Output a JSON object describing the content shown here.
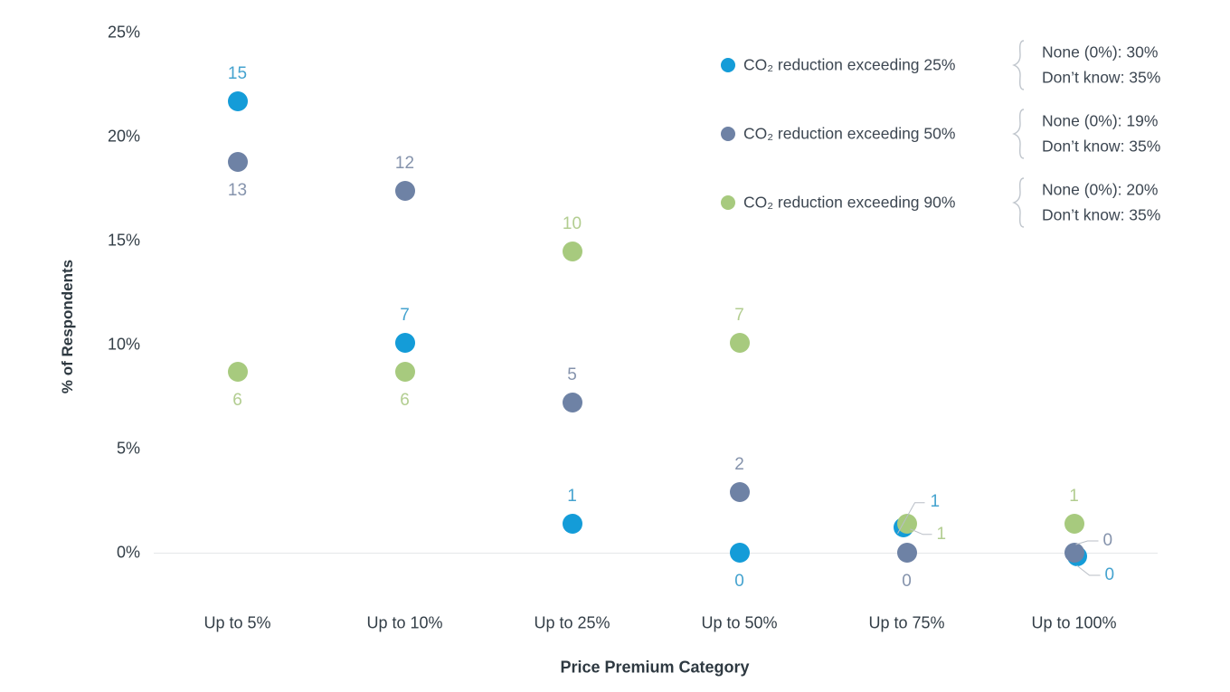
{
  "chart_data": {
    "type": "scatter",
    "title": "",
    "xlabel": "Price Premium Category",
    "ylabel": "% of Respondents",
    "ylim": [
      0,
      25
    ],
    "y_ticks": [
      "0%",
      "5%",
      "10%",
      "15%",
      "20%",
      "25%"
    ],
    "grid": false,
    "legend_position": "top-right",
    "categories": [
      "Up to 5%",
      "Up to 10%",
      "Up to 25%",
      "Up to 50%",
      "Up to 75%",
      "Up to 100%"
    ],
    "series": [
      {
        "name": "CO₂ reduction exceeding 25%",
        "color": "#149cd8",
        "label_color": "#45a3cf",
        "counts": [
          15,
          7,
          1,
          0,
          1,
          0
        ],
        "values_pct": [
          21.7,
          10.1,
          1.4,
          0,
          1.4,
          0
        ],
        "annotation": {
          "none": "None (0%): 30%",
          "dont_know": "Don’t know: 35%"
        }
      },
      {
        "name": "CO₂ reduction exceeding 50%",
        "color": "#6e82a5",
        "label_color": "#8593ac",
        "counts": [
          13,
          12,
          5,
          2,
          0,
          0
        ],
        "values_pct": [
          18.8,
          17.4,
          7.2,
          2.9,
          0,
          0
        ],
        "annotation": {
          "none": "None (0%): 19%",
          "dont_know": "Don’t know: 35%"
        }
      },
      {
        "name": "CO₂ reduction exceeding 90%",
        "color": "#a7ca7e",
        "label_color": "#b2cd90",
        "counts": [
          6,
          6,
          10,
          7,
          1,
          1
        ],
        "values_pct": [
          8.7,
          8.7,
          14.5,
          10.1,
          1.4,
          1.4
        ],
        "annotation": {
          "none": "None (0%): 20%",
          "dont_know": "Don’t know: 35%"
        }
      }
    ]
  }
}
